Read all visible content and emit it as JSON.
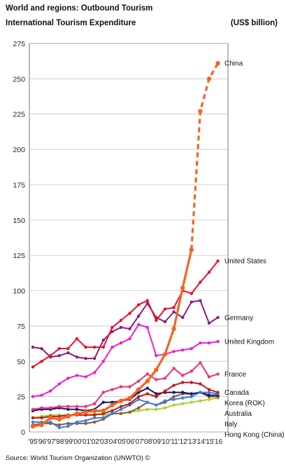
{
  "header": {
    "title": "World and regions: Outbound Tourism",
    "subtitle": "International Tourism Expenditure",
    "unit": "(US$ billion)"
  },
  "footer": {
    "source": "Source: World Tourism Organization (UNWTO) ©"
  },
  "chart_data": {
    "type": "line",
    "title": "World and regions: Outbound Tourism",
    "subtitle": "International Tourism Expenditure",
    "unit": "(US$ billion)",
    "grid": true,
    "ylim": [
      0,
      275
    ],
    "yticks": [
      0,
      25,
      50,
      75,
      100,
      125,
      150,
      175,
      200,
      225,
      250,
      275
    ],
    "x": [
      "'95",
      "'96",
      "'97",
      "'98",
      "'99",
      "'00",
      "'01",
      "'02",
      "'03",
      "'04",
      "'05",
      "'06",
      "'07",
      "'08",
      "'09",
      "'10",
      "'11",
      "'12",
      "'13",
      "'14",
      "'15",
      "'16"
    ],
    "series": [
      {
        "name": "China",
        "color": "#f26522",
        "dashed_from_index": 18,
        "values": [
          4,
          5,
          10,
          9,
          11,
          13,
          14,
          15,
          15,
          19,
          22,
          24,
          30,
          36,
          44,
          55,
          73,
          102,
          129,
          227,
          250,
          261
        ]
      },
      {
        "name": "United States",
        "color": "#e8102b",
        "values": [
          46,
          50,
          54,
          59,
          59,
          66,
          60,
          60,
          60,
          74,
          79,
          84,
          90,
          93,
          79,
          87,
          88,
          100,
          98,
          106,
          113,
          121
        ]
      },
      {
        "name": "Germany",
        "color": "#8b1e7e",
        "values": [
          60,
          59,
          53,
          54,
          56,
          53,
          52,
          52,
          65,
          71,
          74,
          73,
          82,
          91,
          81,
          78,
          85,
          81,
          92,
          93,
          77,
          81
        ]
      },
      {
        "name": "United Kingdom",
        "color": "#ee1fd0",
        "values": [
          25,
          26,
          29,
          34,
          38,
          40,
          39,
          42,
          50,
          60,
          63,
          66,
          76,
          74,
          54,
          55,
          57,
          58,
          59,
          63,
          63,
          64
        ]
      },
      {
        "name": "France",
        "color": "#f0307a",
        "values": [
          16,
          17,
          17,
          18,
          18,
          18,
          18,
          20,
          28,
          30,
          32,
          32,
          36,
          41,
          37,
          38,
          45,
          40,
          43,
          49,
          39,
          41
        ]
      },
      {
        "name": "Canada",
        "color": "#c21a1a",
        "values": [
          10,
          10,
          11,
          11,
          12,
          12,
          12,
          12,
          13,
          15,
          18,
          20,
          25,
          27,
          25,
          29,
          33,
          35,
          35,
          34,
          30,
          28
        ]
      },
      {
        "name": "Korea (ROK)",
        "color": "#3a7de0",
        "values": [
          7,
          7,
          7,
          3,
          4,
          7,
          8,
          10,
          10,
          13,
          16,
          19,
          23,
          21,
          19,
          22,
          23,
          24,
          25,
          28,
          28,
          27
        ]
      },
      {
        "name": "Australia",
        "color": "#17176d",
        "values": [
          15,
          16,
          16,
          17,
          16,
          16,
          15,
          16,
          21,
          21,
          22,
          23,
          28,
          31,
          27,
          28,
          28,
          28,
          27,
          28,
          26,
          26
        ]
      },
      {
        "name": "Italy",
        "color": "#8a5a33",
        "values": [
          5,
          6,
          6,
          5,
          6,
          6,
          6,
          7,
          9,
          13,
          13,
          14,
          17,
          21,
          19,
          21,
          25,
          27,
          27,
          28,
          25,
          25
        ]
      },
      {
        "name": "Hong Kong (China)",
        "color": "#a8d13a",
        "values": [
          10,
          11,
          12,
          12,
          12,
          12,
          12,
          13,
          12,
          13,
          13,
          14,
          15,
          16,
          16,
          17,
          19,
          20,
          21,
          22,
          23,
          24
        ]
      }
    ]
  }
}
